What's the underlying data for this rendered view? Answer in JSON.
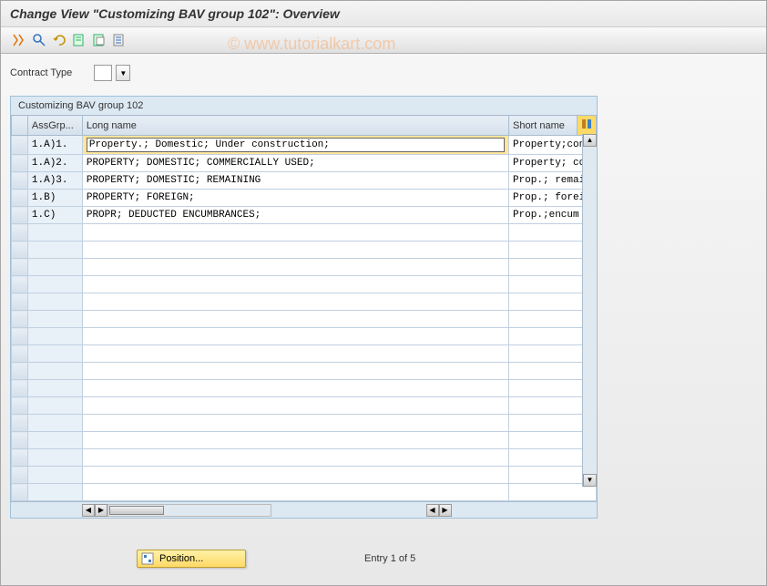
{
  "title": "Change View \"Customizing BAV group 102\": Overview",
  "watermark": "© www.tutorialkart.com",
  "toolbar": {
    "icons": [
      "other-view",
      "find",
      "undo",
      "new-entries",
      "copy",
      "delete"
    ]
  },
  "filter": {
    "label": "Contract Type",
    "value": ""
  },
  "table": {
    "title": "Customizing BAV group 102",
    "headers": {
      "assgrp": "AssGrp...",
      "long": "Long name",
      "short": "Short name"
    },
    "rows": [
      {
        "assgrp": "1.A)1.",
        "long": "Property.; Domestic; Under construction;",
        "short": "Property;con",
        "selected": true
      },
      {
        "assgrp": "1.A)2.",
        "long": "PROPERTY; DOMESTIC; COMMERCIALLY USED;",
        "short": "Property; co",
        "selected": false
      },
      {
        "assgrp": "1.A)3.",
        "long": "PROPERTY; DOMESTIC; REMAINING",
        "short": "Prop.; remain",
        "selected": false
      },
      {
        "assgrp": "1.B)",
        "long": "PROPERTY; FOREIGN;",
        "short": "Prop.; foreig",
        "selected": false
      },
      {
        "assgrp": "1.C)",
        "long": "PROPR; DEDUCTED ENCUMBRANCES;",
        "short": "Prop.;encum",
        "selected": false
      }
    ],
    "empty_row_count": 16
  },
  "footer": {
    "position_label": "Position...",
    "entry_text": "Entry 1 of 5"
  },
  "colors": {
    "title_bg": "#e8e8e8",
    "highlight": "#ffe69c",
    "position_btn": "#ffd966",
    "header_bg": "#d4e0ec",
    "border": "#a8bcd0"
  }
}
